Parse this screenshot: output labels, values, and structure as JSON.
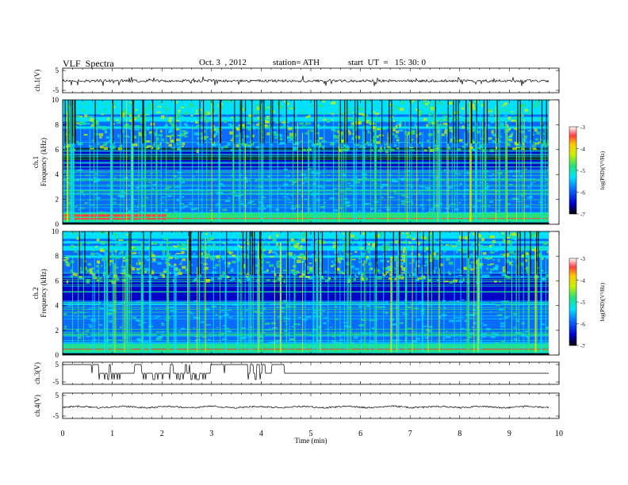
{
  "header": {
    "title": "VLF  Spectra",
    "date": "Oct. 3  , 2012",
    "station": "station= ATH",
    "start": "start  UT  =   15: 30: 0"
  },
  "colors": {
    "spectrogram_scale": [
      "#000000",
      "#0000c8",
      "#0a6cff",
      "#00e0ff",
      "#28e07a",
      "#c8f000",
      "#ffc800",
      "#ff4040",
      "#ffffff"
    ],
    "trace": "#000000"
  },
  "chart_data": [
    {
      "type": "line",
      "name": "ch1-panel",
      "ylabel": "ch.1(V)",
      "yticks": [
        "5",
        "-5"
      ],
      "ylim": [
        -5,
        5
      ],
      "xlim": [
        0,
        10
      ],
      "series": [
        {
          "name": "",
          "description_value_level": 0.2,
          "noise_amplitude": 0.5
        }
      ]
    },
    {
      "type": "heatmap",
      "name": "ch1-spectrogram",
      "ylabel": "ch.1\nFrequency  (kHz)",
      "yticks": [
        "0",
        "2",
        "4",
        "6",
        "8",
        "10"
      ],
      "ylim": [
        0,
        10
      ],
      "xlim": [
        0,
        9.8
      ],
      "colorbar": {
        "label": "log(PSD)(V²/Hz)",
        "ticks": [
          "-3",
          "-4",
          "-5",
          "-6",
          "-7"
        ],
        "range": [
          -7,
          -3
        ]
      },
      "features": {
        "low_freq_band_kHz": [
          0,
          1
        ],
        "dark_band_kHz": [
          4.5,
          6
        ],
        "sferic_count_approx": 120,
        "red_band_until_min": 2.1
      }
    },
    {
      "type": "heatmap",
      "name": "ch2-spectrogram",
      "ylabel": "ch.2\nFrequency  (kHz)",
      "yticks": [
        "0",
        "2",
        "4",
        "6",
        "8",
        "10"
      ],
      "ylim": [
        0,
        10
      ],
      "xlim": [
        0,
        9.8
      ],
      "colorbar": {
        "label": "log(PSD)(V²/Hz)",
        "ticks": [
          "-3",
          "-4",
          "-5",
          "-6",
          "-7"
        ],
        "range": [
          -7,
          -3
        ]
      },
      "features": {
        "low_freq_band_kHz": [
          0,
          1
        ],
        "dark_band_kHz": [
          5.5,
          6.5
        ]
      }
    },
    {
      "type": "line",
      "name": "ch3-panel",
      "ylabel": "ch.3(V)",
      "yticks": [
        "5",
        "-5"
      ],
      "ylim": [
        -5,
        5
      ],
      "xlim": [
        0,
        10
      ],
      "series": [
        {
          "name": "",
          "baseline": 0.0,
          "toggle_until_min": 4.5
        }
      ]
    },
    {
      "type": "line",
      "name": "ch4-panel",
      "ylabel": "ch.4(V)",
      "yticks": [
        "5",
        "-5"
      ],
      "ylim": [
        -5,
        5
      ],
      "xlim": [
        0,
        10
      ],
      "series": [
        {
          "name": "",
          "baseline": 0.0
        }
      ]
    }
  ],
  "xaxis": {
    "label": "Time  (min)",
    "ticks": [
      "0",
      "1",
      "2",
      "3",
      "4",
      "5",
      "6",
      "7",
      "8",
      "9",
      "10"
    ],
    "range": [
      0,
      10
    ]
  }
}
